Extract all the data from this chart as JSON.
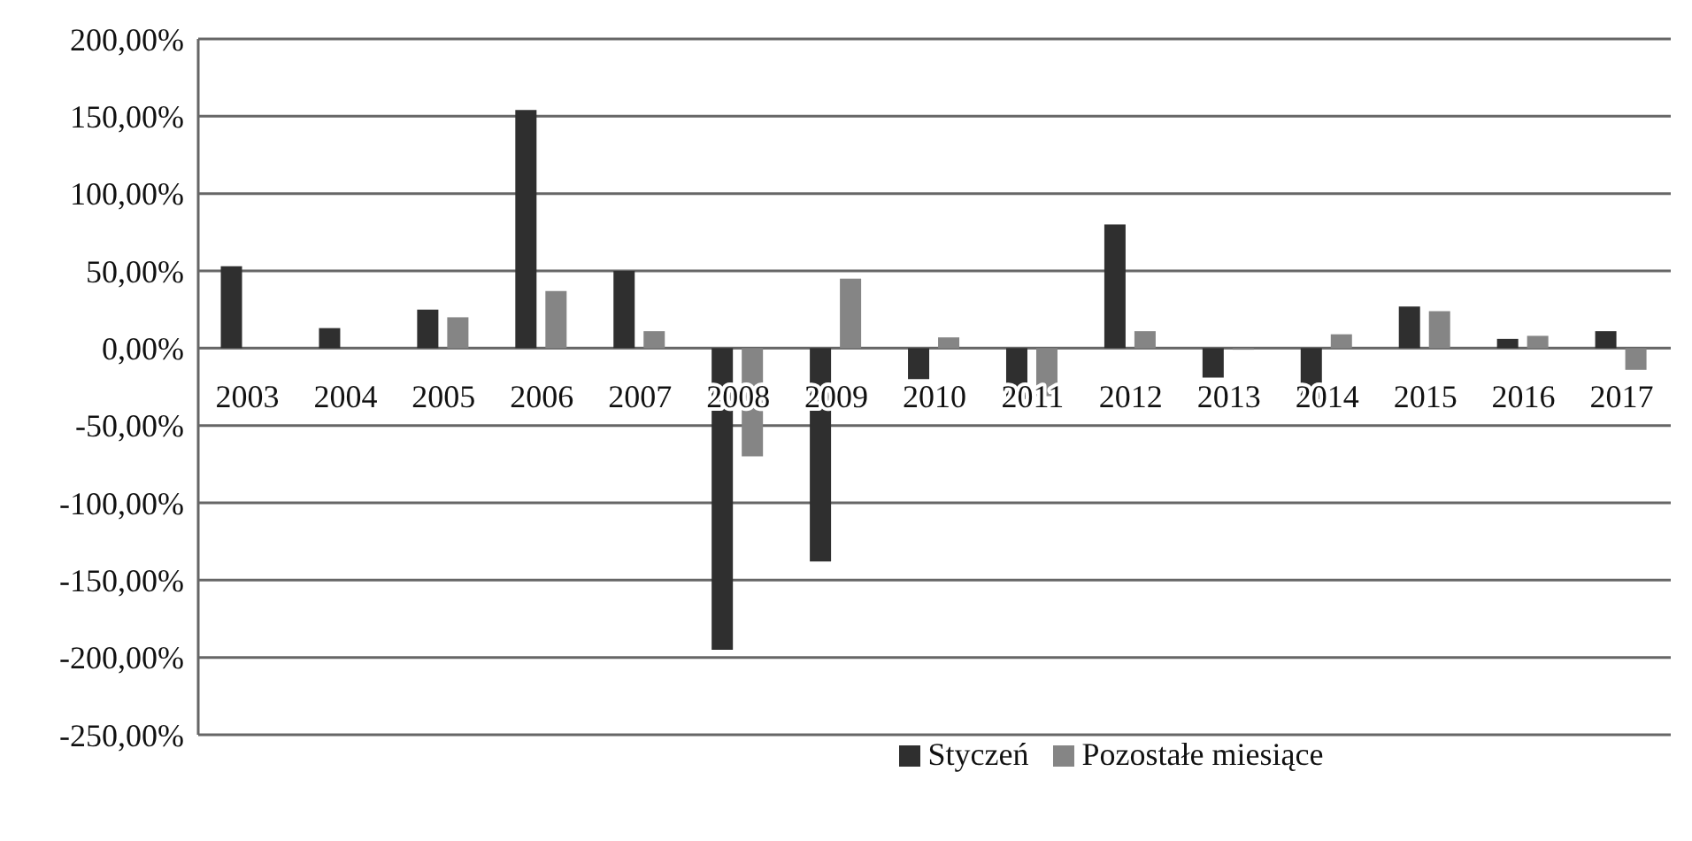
{
  "chart_data": {
    "type": "bar",
    "categories": [
      "2003",
      "2004",
      "2005",
      "2006",
      "2007",
      "2008",
      "2009",
      "2010",
      "2011",
      "2012",
      "2013",
      "2014",
      "2015",
      "2016",
      "2017"
    ],
    "series": [
      {
        "name": "Styczeń",
        "color": "#2f2f2f",
        "values": [
          53,
          13,
          25,
          154,
          50,
          -195,
          -138,
          -20,
          -33,
          80,
          -19,
          -33,
          27,
          6,
          11
        ]
      },
      {
        "name": "Pozostałe miesiące",
        "color": "#858585",
        "values": [
          null,
          0,
          20,
          37,
          11,
          -70,
          45,
          7,
          -31,
          11,
          -1,
          9,
          24,
          8,
          -14
        ]
      }
    ],
    "ylim": [
      -250,
      200
    ],
    "yticks": [
      {
        "value": -250,
        "label": "-250,00%"
      },
      {
        "value": -200,
        "label": "-200,00%"
      },
      {
        "value": -150,
        "label": "-150,00%"
      },
      {
        "value": -100,
        "label": "-100,00%"
      },
      {
        "value": -50,
        "label": "-50,00%"
      },
      {
        "value": 0,
        "label": "0,00%"
      },
      {
        "value": 50,
        "label": "50,00%"
      },
      {
        "value": 100,
        "label": "100,00%"
      },
      {
        "value": 150,
        "label": "150,00%"
      },
      {
        "value": 200,
        "label": "200,00%"
      }
    ],
    "grid": "y",
    "legend": "bottom"
  }
}
